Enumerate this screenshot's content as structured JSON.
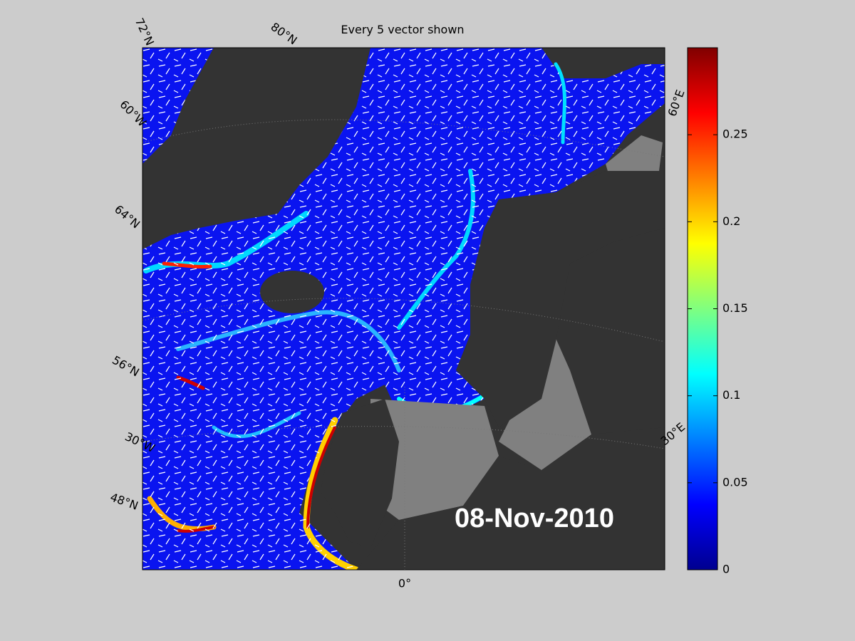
{
  "title": "Every 5 vector shown",
  "date": "08-Nov-2010",
  "map_labels": [
    "72°N",
    "80°N",
    "60°W",
    "64°N",
    "56°N",
    "30°W",
    "48°N",
    "0°",
    "30°E",
    "60°E"
  ],
  "colorbar": {
    "lim": [
      0,
      0.3
    ],
    "ticks": [
      0,
      0.05,
      0.1,
      0.15,
      0.2,
      0.25
    ]
  }
}
